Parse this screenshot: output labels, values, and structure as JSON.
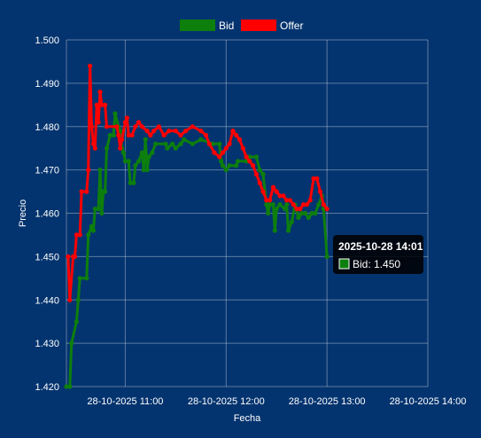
{
  "chart_data": {
    "type": "line",
    "xlabel": "Fecha",
    "ylabel": "Precio",
    "ylim": [
      1.42,
      1.5
    ],
    "y_ticks": [
      "1.420",
      "1.430",
      "1.440",
      "1.450",
      "1.460",
      "1.470",
      "1.480",
      "1.490",
      "1.500"
    ],
    "x_range": [
      "2025-10-28 10:25",
      "2025-10-28 14:00"
    ],
    "x_ticks": [
      {
        "t": "2025-10-28 11:00",
        "label": "28-10-2025 11:00"
      },
      {
        "t": "2025-10-28 12:00",
        "label": "28-10-2025 12:00"
      },
      {
        "t": "2025-10-28 13:00",
        "label": "28-10-2025 13:00"
      },
      {
        "t": "2025-10-28 14:00",
        "label": "28-10-2025 14:00"
      }
    ],
    "grid": true,
    "legend_position": "top",
    "series": [
      {
        "name": "Bid",
        "color": "#0d7f0d",
        "points": [
          [
            "10:25",
            1.42
          ],
          [
            "10:27",
            1.42
          ],
          [
            "10:28",
            1.43
          ],
          [
            "10:31",
            1.435
          ],
          [
            "10:32",
            1.44
          ],
          [
            "10:33",
            1.445
          ],
          [
            "10:37",
            1.445
          ],
          [
            "10:38",
            1.455
          ],
          [
            "10:40",
            1.457
          ],
          [
            "10:41",
            1.456
          ],
          [
            "10:42",
            1.461
          ],
          [
            "10:44",
            1.461
          ],
          [
            "10:45",
            1.47
          ],
          [
            "10:46",
            1.46
          ],
          [
            "10:47",
            1.465
          ],
          [
            "10:48",
            1.465
          ],
          [
            "10:49",
            1.475
          ],
          [
            "10:51",
            1.478
          ],
          [
            "10:53",
            1.478
          ],
          [
            "10:54",
            1.483
          ],
          [
            "10:56",
            1.48
          ],
          [
            "10:57",
            1.479
          ],
          [
            "10:58",
            1.475
          ],
          [
            "10:59",
            1.474
          ],
          [
            "11:00",
            1.472
          ],
          [
            "11:02",
            1.472
          ],
          [
            "11:03",
            1.467
          ],
          [
            "11:05",
            1.467
          ],
          [
            "11:06",
            1.471
          ],
          [
            "11:08",
            1.472
          ],
          [
            "11:10",
            1.474
          ],
          [
            "11:11",
            1.47
          ],
          [
            "11:12",
            1.477
          ],
          [
            "11:13",
            1.47
          ],
          [
            "11:14",
            1.473
          ],
          [
            "11:16",
            1.474
          ],
          [
            "11:18",
            1.476
          ],
          [
            "11:24",
            1.476
          ],
          [
            "11:25",
            1.475
          ],
          [
            "11:28",
            1.476
          ],
          [
            "11:30",
            1.475
          ],
          [
            "11:33",
            1.476
          ],
          [
            "11:35",
            1.477
          ],
          [
            "11:40",
            1.476
          ],
          [
            "11:45",
            1.477
          ],
          [
            "11:52",
            1.476
          ],
          [
            "11:56",
            1.476
          ],
          [
            "11:57",
            1.472
          ],
          [
            "11:58",
            1.471
          ],
          [
            "12:00",
            1.47
          ],
          [
            "12:02",
            1.471
          ],
          [
            "12:06",
            1.471
          ],
          [
            "12:07",
            1.472
          ],
          [
            "12:12",
            1.472
          ],
          [
            "12:14",
            1.473
          ],
          [
            "12:18",
            1.473
          ],
          [
            "12:20",
            1.47
          ],
          [
            "12:22",
            1.469
          ],
          [
            "12:24",
            1.462
          ],
          [
            "12:25",
            1.46
          ],
          [
            "12:26",
            1.462
          ],
          [
            "12:28",
            1.462
          ],
          [
            "12:29",
            1.456
          ],
          [
            "12:30",
            1.461
          ],
          [
            "12:32",
            1.462
          ],
          [
            "12:35",
            1.461
          ],
          [
            "12:36",
            1.462
          ],
          [
            "12:37",
            1.456
          ],
          [
            "12:39",
            1.458
          ],
          [
            "12:41",
            1.462
          ],
          [
            "12:43",
            1.459
          ],
          [
            "12:45",
            1.46
          ],
          [
            "12:47",
            1.46
          ],
          [
            "12:49",
            1.459
          ],
          [
            "12:51",
            1.46
          ],
          [
            "12:53",
            1.46
          ],
          [
            "12:55",
            1.462
          ],
          [
            "12:57",
            1.464
          ],
          [
            "12:58",
            1.461
          ],
          [
            "13:00",
            1.45
          ]
        ]
      },
      {
        "name": "Offer",
        "color": "#ff0000",
        "points": [
          [
            "10:26",
            1.45
          ],
          [
            "10:27",
            1.44
          ],
          [
            "10:29",
            1.45
          ],
          [
            "10:30",
            1.45
          ],
          [
            "10:31",
            1.455
          ],
          [
            "10:33",
            1.455
          ],
          [
            "10:34",
            1.465
          ],
          [
            "10:37",
            1.465
          ],
          [
            "10:38",
            1.47
          ],
          [
            "10:39",
            1.494
          ],
          [
            "10:40",
            1.48
          ],
          [
            "10:41",
            1.476
          ],
          [
            "10:42",
            1.475
          ],
          [
            "10:43",
            1.485
          ],
          [
            "10:44",
            1.481
          ],
          [
            "10:45",
            1.488
          ],
          [
            "10:46",
            1.485
          ],
          [
            "10:48",
            1.485
          ],
          [
            "10:49",
            1.48
          ],
          [
            "10:55",
            1.48
          ],
          [
            "10:56",
            1.478
          ],
          [
            "10:57",
            1.475
          ],
          [
            "10:58",
            1.477
          ],
          [
            "11:00",
            1.481
          ],
          [
            "11:01",
            1.482
          ],
          [
            "11:02",
            1.478
          ],
          [
            "11:04",
            1.478
          ],
          [
            "11:06",
            1.48
          ],
          [
            "11:08",
            1.481
          ],
          [
            "11:10",
            1.48
          ],
          [
            "11:13",
            1.479
          ],
          [
            "11:15",
            1.478
          ],
          [
            "11:17",
            1.479
          ],
          [
            "11:20",
            1.48
          ],
          [
            "11:23",
            1.478
          ],
          [
            "11:26",
            1.479
          ],
          [
            "11:30",
            1.479
          ],
          [
            "11:33",
            1.478
          ],
          [
            "11:36",
            1.479
          ],
          [
            "11:40",
            1.48
          ],
          [
            "11:45",
            1.479
          ],
          [
            "11:48",
            1.478
          ],
          [
            "11:50",
            1.476
          ],
          [
            "11:53",
            1.474
          ],
          [
            "11:56",
            1.473
          ],
          [
            "11:58",
            1.474
          ],
          [
            "12:00",
            1.475
          ],
          [
            "12:02",
            1.476
          ],
          [
            "12:04",
            1.479
          ],
          [
            "12:06",
            1.478
          ],
          [
            "12:08",
            1.477
          ],
          [
            "12:10",
            1.475
          ],
          [
            "12:12",
            1.473
          ],
          [
            "12:14",
            1.472
          ],
          [
            "12:16",
            1.471
          ],
          [
            "12:18",
            1.469
          ],
          [
            "12:20",
            1.467
          ],
          [
            "12:22",
            1.465
          ],
          [
            "12:24",
            1.463
          ],
          [
            "12:26",
            1.463
          ],
          [
            "12:28",
            1.466
          ],
          [
            "12:30",
            1.465
          ],
          [
            "12:32",
            1.464
          ],
          [
            "12:34",
            1.464
          ],
          [
            "12:36",
            1.463
          ],
          [
            "12:38",
            1.463
          ],
          [
            "12:40",
            1.462
          ],
          [
            "12:42",
            1.461
          ],
          [
            "12:44",
            1.461
          ],
          [
            "12:46",
            1.462
          ],
          [
            "12:48",
            1.462
          ],
          [
            "12:50",
            1.463
          ],
          [
            "12:52",
            1.468
          ],
          [
            "12:54",
            1.468
          ],
          [
            "12:56",
            1.465
          ],
          [
            "12:58",
            1.462
          ],
          [
            "13:00",
            1.461
          ]
        ]
      }
    ],
    "tooltip": {
      "title": "2025-10-28 14:01",
      "series": "Bid",
      "label": "Bid: 1.450",
      "color": "#0d7f0d"
    }
  }
}
